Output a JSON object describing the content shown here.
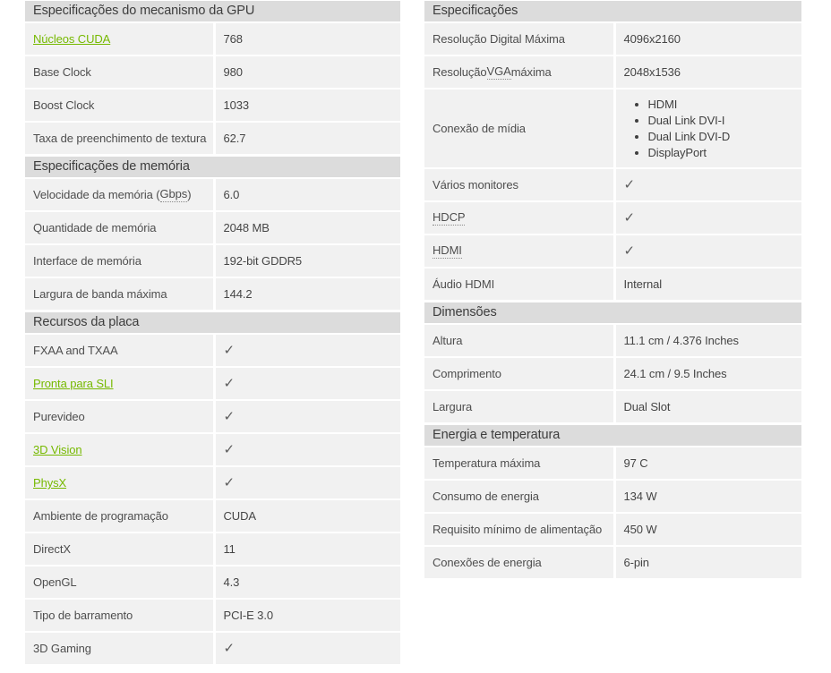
{
  "icons": {
    "check_glyph": "✓"
  },
  "colors": {
    "section_header_bg": "#dcdcdc",
    "row_bg": "#f1f1f1",
    "link_green": "#76b900",
    "text": "#4e4e4e",
    "check": "#5c5c5c"
  },
  "columns": [
    {
      "side": "left",
      "sections": [
        {
          "name": "gpu-engine-specs",
          "header": "Especificações do mecanismo da GPU",
          "rows": [
            {
              "label": [
                {
                  "text": "Núcleos CUDA",
                  "style": "link"
                }
              ],
              "value": {
                "type": "text",
                "text": "768"
              }
            },
            {
              "label": [
                {
                  "text": "Base Clock"
                }
              ],
              "value": {
                "type": "text",
                "text": "980"
              }
            },
            {
              "label": [
                {
                  "text": "Boost Clock"
                }
              ],
              "value": {
                "type": "text",
                "text": "1033"
              }
            },
            {
              "label": [
                {
                  "text": "Taxa de preenchimento de textura"
                }
              ],
              "value": {
                "type": "text",
                "text": "62.7"
              }
            }
          ]
        },
        {
          "name": "memory-specs",
          "header": "Especificações de memória",
          "rows": [
            {
              "label": [
                {
                  "text": "Velocidade da memória ( "
                },
                {
                  "text": "Gbps",
                  "style": "dotted"
                },
                {
                  "text": " )"
                }
              ],
              "value": {
                "type": "text",
                "text": "6.0"
              }
            },
            {
              "label": [
                {
                  "text": "Quantidade de memória"
                }
              ],
              "value": {
                "type": "text",
                "text": "2048 MB"
              }
            },
            {
              "label": [
                {
                  "text": "Interface de memória"
                }
              ],
              "value": {
                "type": "text",
                "text": "192-bit GDDR5"
              }
            },
            {
              "label": [
                {
                  "text": "Largura de banda máxima"
                }
              ],
              "value": {
                "type": "text",
                "text": "144.2"
              }
            }
          ]
        },
        {
          "name": "board-features",
          "header": "Recursos da placa",
          "rows": [
            {
              "label": [
                {
                  "text": "FXAA and TXAA"
                }
              ],
              "value": {
                "type": "check"
              }
            },
            {
              "label": [
                {
                  "text": "Pronta para SLI",
                  "style": "link"
                }
              ],
              "value": {
                "type": "check"
              }
            },
            {
              "label": [
                {
                  "text": "Purevideo"
                }
              ],
              "value": {
                "type": "check"
              }
            },
            {
              "label": [
                {
                  "text": "3D Vision",
                  "style": "link"
                }
              ],
              "value": {
                "type": "check"
              }
            },
            {
              "label": [
                {
                  "text": "PhysX",
                  "style": "link"
                }
              ],
              "value": {
                "type": "check"
              }
            },
            {
              "label": [
                {
                  "text": "Ambiente de programação"
                }
              ],
              "value": {
                "type": "text",
                "text": "CUDA"
              }
            },
            {
              "label": [
                {
                  "text": "DirectX"
                }
              ],
              "value": {
                "type": "text",
                "text": "11"
              }
            },
            {
              "label": [
                {
                  "text": "OpenGL"
                }
              ],
              "value": {
                "type": "text",
                "text": "4.3"
              }
            },
            {
              "label": [
                {
                  "text": "Tipo de barramento"
                }
              ],
              "value": {
                "type": "text",
                "text": "PCI-E 3.0"
              }
            },
            {
              "label": [
                {
                  "text": "3D Gaming"
                }
              ],
              "value": {
                "type": "check"
              }
            }
          ]
        }
      ]
    },
    {
      "side": "right",
      "sections": [
        {
          "name": "display-specs",
          "header": "Especificações",
          "rows": [
            {
              "label": [
                {
                  "text": "Resolução Digital Máxima"
                }
              ],
              "value": {
                "type": "text",
                "text": "4096x2160"
              }
            },
            {
              "label": [
                {
                  "text": "Resolução "
                },
                {
                  "text": "VGA",
                  "style": "dotted"
                },
                {
                  "text": " máxima"
                }
              ],
              "value": {
                "type": "text",
                "text": "2048x1536"
              }
            },
            {
              "label": [
                {
                  "text": "Conexão de mídia"
                }
              ],
              "value": {
                "type": "list",
                "items": [
                  "HDMI",
                  "Dual Link DVI-I",
                  "Dual Link DVI-D",
                  "DisplayPort"
                ]
              }
            },
            {
              "label": [
                {
                  "text": "Vários monitores"
                }
              ],
              "value": {
                "type": "check"
              }
            },
            {
              "label": [
                {
                  "text": "HDCP",
                  "style": "dotted"
                }
              ],
              "value": {
                "type": "check"
              }
            },
            {
              "label": [
                {
                  "text": "HDMI",
                  "style": "dotted"
                }
              ],
              "value": {
                "type": "check"
              }
            },
            {
              "label": [
                {
                  "text": "Áudio HDMI"
                }
              ],
              "value": {
                "type": "text",
                "text": "Internal"
              }
            }
          ]
        },
        {
          "name": "dimensions",
          "header": "Dimensões",
          "rows": [
            {
              "label": [
                {
                  "text": "Altura"
                }
              ],
              "value": {
                "type": "text",
                "text": "11.1 cm / 4.376 Inches"
              }
            },
            {
              "label": [
                {
                  "text": "Comprimento"
                }
              ],
              "value": {
                "type": "text",
                "text": "24.1 cm / 9.5 Inches"
              }
            },
            {
              "label": [
                {
                  "text": "Largura"
                }
              ],
              "value": {
                "type": "text",
                "text": "Dual Slot"
              }
            }
          ]
        },
        {
          "name": "power-temperature",
          "header": "Energia e temperatura",
          "rows": [
            {
              "label": [
                {
                  "text": "Temperatura máxima"
                }
              ],
              "value": {
                "type": "text",
                "text": "97 C"
              }
            },
            {
              "label": [
                {
                  "text": "Consumo de energia"
                }
              ],
              "value": {
                "type": "text",
                "text": "134 W"
              }
            },
            {
              "label": [
                {
                  "text": "Requisito mínimo de alimentação"
                }
              ],
              "value": {
                "type": "text",
                "text": "450 W"
              }
            },
            {
              "label": [
                {
                  "text": "Conexões de energia"
                }
              ],
              "value": {
                "type": "text",
                "text": "6-pin"
              }
            }
          ]
        }
      ]
    }
  ]
}
